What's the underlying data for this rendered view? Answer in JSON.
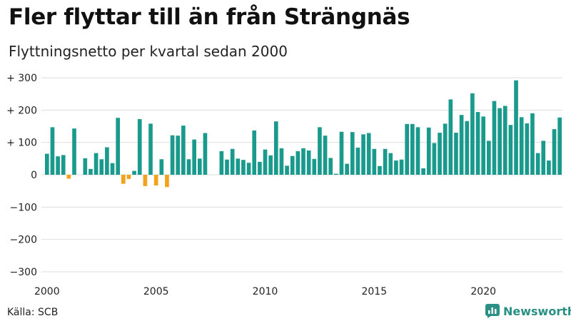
{
  "header": {
    "title": "Fler flyttar till än från Strängnäs",
    "subtitle": "Flyttningsnetto per kvartal sedan 2000"
  },
  "footer": {
    "source": "Källa: SCB",
    "brand": "Newsworthy"
  },
  "colors": {
    "positive": "#1a9a8c",
    "negative": "#f5a21b",
    "grid": "#dddddd",
    "brand": "#2a8f85"
  },
  "chart_data": {
    "type": "bar",
    "title": "Fler flyttar till än från Strängnäs",
    "subtitle": "Flyttningsnetto per kvartal sedan 2000",
    "ylim": [
      -300,
      300
    ],
    "y_ticks": [
      {
        "value": 300,
        "label": "+ 300"
      },
      {
        "value": 200,
        "label": "+ 200"
      },
      {
        "value": 100,
        "label": "+ 100"
      },
      {
        "value": 0,
        "label": "0"
      },
      {
        "value": -100,
        "label": "−100"
      },
      {
        "value": -200,
        "label": "−200"
      },
      {
        "value": -300,
        "label": "−300"
      }
    ],
    "x_ticks": [
      {
        "year": 2000,
        "label": "2000"
      },
      {
        "year": 2005,
        "label": "2005"
      },
      {
        "year": 2010,
        "label": "2010"
      },
      {
        "year": 2015,
        "label": "2015"
      },
      {
        "year": 2020,
        "label": "2020"
      }
    ],
    "grid": "horizontal",
    "start": "2000 Q1",
    "frequency": "quarterly",
    "values": [
      65,
      147,
      57,
      61,
      -12,
      143,
      0,
      51,
      18,
      67,
      48,
      85,
      36,
      176,
      -28,
      -13,
      12,
      172,
      -35,
      158,
      -33,
      48,
      -38,
      122,
      121,
      152,
      48,
      109,
      50,
      129,
      0,
      0,
      73,
      47,
      80,
      50,
      46,
      37,
      137,
      40,
      78,
      60,
      165,
      82,
      28,
      58,
      73,
      82,
      75,
      49,
      147,
      121,
      52,
      3,
      133,
      34,
      132,
      84,
      125,
      129,
      80,
      27,
      80,
      67,
      44,
      47,
      157,
      157,
      147,
      20,
      146,
      98,
      130,
      158,
      233,
      130,
      185,
      166,
      252,
      194,
      180,
      105,
      228,
      206,
      213,
      154,
      292,
      178,
      159,
      190,
      67,
      105,
      44,
      141,
      177
    ]
  }
}
